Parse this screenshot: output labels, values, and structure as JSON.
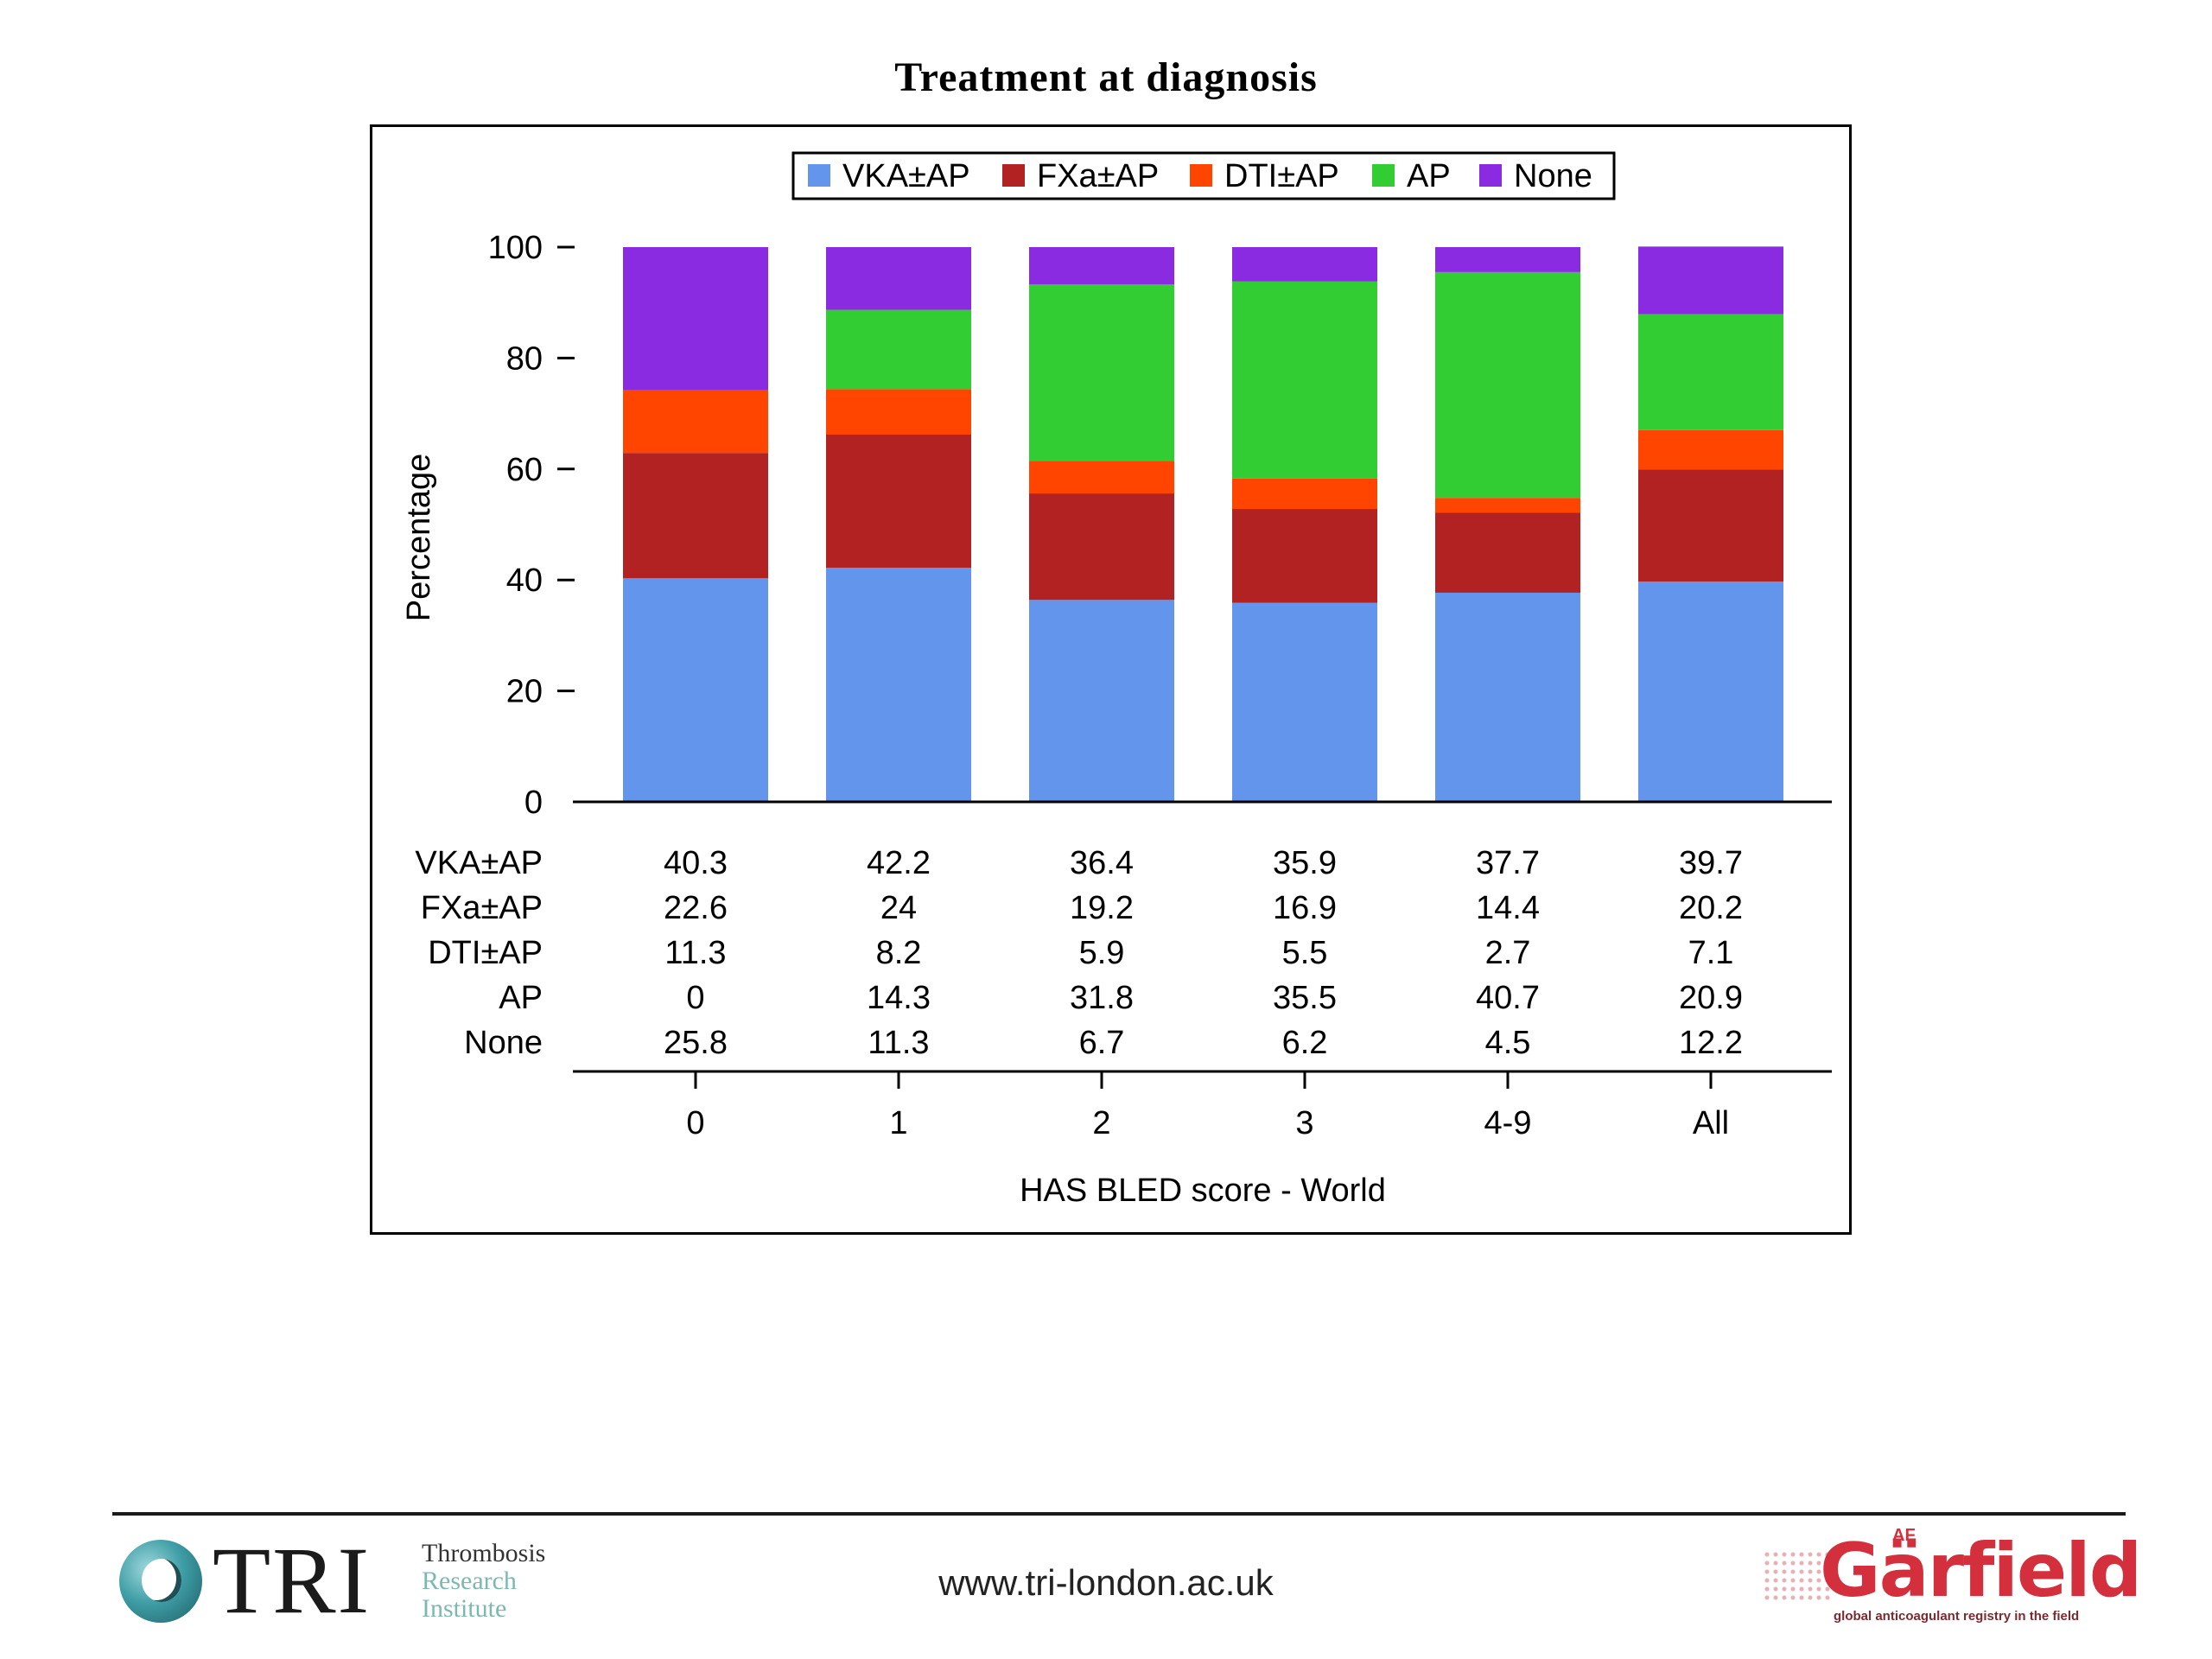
{
  "slide": {
    "title": "Treatment at diagnosis"
  },
  "chart_data": {
    "type": "bar",
    "stacked": true,
    "categories": [
      "0",
      "1",
      "2",
      "3",
      "4-9",
      "All"
    ],
    "series": [
      {
        "name": "VKA±AP",
        "color": "#6495ED",
        "values": [
          40.3,
          42.2,
          36.4,
          35.9,
          37.7,
          39.7
        ]
      },
      {
        "name": "FXa±AP",
        "color": "#B22222",
        "values": [
          22.6,
          24,
          19.2,
          16.9,
          14.4,
          20.2
        ]
      },
      {
        "name": "DTI±AP",
        "color": "#FF4500",
        "values": [
          11.3,
          8.2,
          5.9,
          5.5,
          2.7,
          7.1
        ]
      },
      {
        "name": "AP",
        "color": "#32CD32",
        "values": [
          0,
          14.3,
          31.8,
          35.5,
          40.7,
          20.9
        ]
      },
      {
        "name": "None",
        "color": "#8A2BE2",
        "values": [
          25.8,
          11.3,
          6.7,
          6.2,
          4.5,
          12.2
        ]
      }
    ],
    "table_labels": [
      [
        "40.3",
        "42.2",
        "36.4",
        "35.9",
        "37.7",
        "39.7"
      ],
      [
        "22.6",
        "24",
        "19.2",
        "16.9",
        "14.4",
        "20.2"
      ],
      [
        "11.3",
        "8.2",
        "5.9",
        "5.5",
        "2.7",
        "7.1"
      ],
      [
        "0",
        "14.3",
        "31.8",
        "35.5",
        "40.7",
        "20.9"
      ],
      [
        "25.8",
        "11.3",
        "6.7",
        "6.2",
        "4.5",
        "12.2"
      ]
    ],
    "ylabel": "Percentage",
    "xlabel": "HAS BLED score - World",
    "ylim": [
      0,
      100
    ],
    "yticks": [
      "0",
      "20",
      "40",
      "60",
      "80",
      "100"
    ],
    "legend_position": "top-center",
    "grid": false
  },
  "footer": {
    "url": "www.tri-london.ac.uk",
    "tri_logo": {
      "letters": "TRI",
      "words": [
        "Thrombosis",
        "Research",
        "Institute"
      ]
    },
    "garfield_logo": {
      "superscript": "AF",
      "name": "Gärfield",
      "tagline": "global anticoagulant registry in the field"
    }
  }
}
